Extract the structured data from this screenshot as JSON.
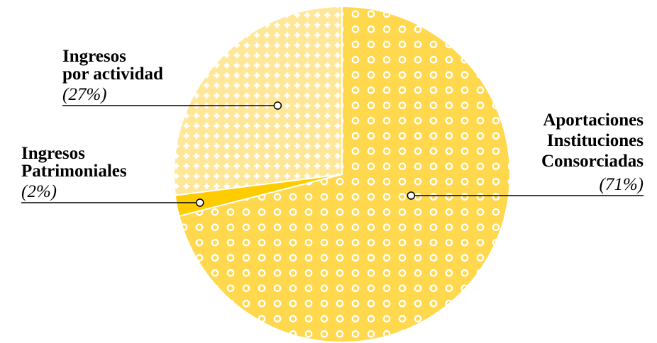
{
  "chart_data": {
    "type": "pie",
    "title": "",
    "start_angle_deg": 0,
    "direction": "clockwise",
    "slices": [
      {
        "name_lines": [
          "Aportaciones",
          "Instituciones",
          "Consorciadas"
        ],
        "value": 71,
        "pct_label": "(71%)",
        "color": "#FFD84D",
        "pattern": "circles"
      },
      {
        "name_lines": [
          "Ingresos",
          "Patrimoniales"
        ],
        "value": 2,
        "pct_label": "(2%)",
        "color": "#FFCC00",
        "pattern": "none"
      },
      {
        "name_lines": [
          "Ingresos",
          "por actividad"
        ],
        "value": 27,
        "pct_label": "(27%)",
        "color": "#FFE79A",
        "pattern": "plus"
      }
    ]
  }
}
